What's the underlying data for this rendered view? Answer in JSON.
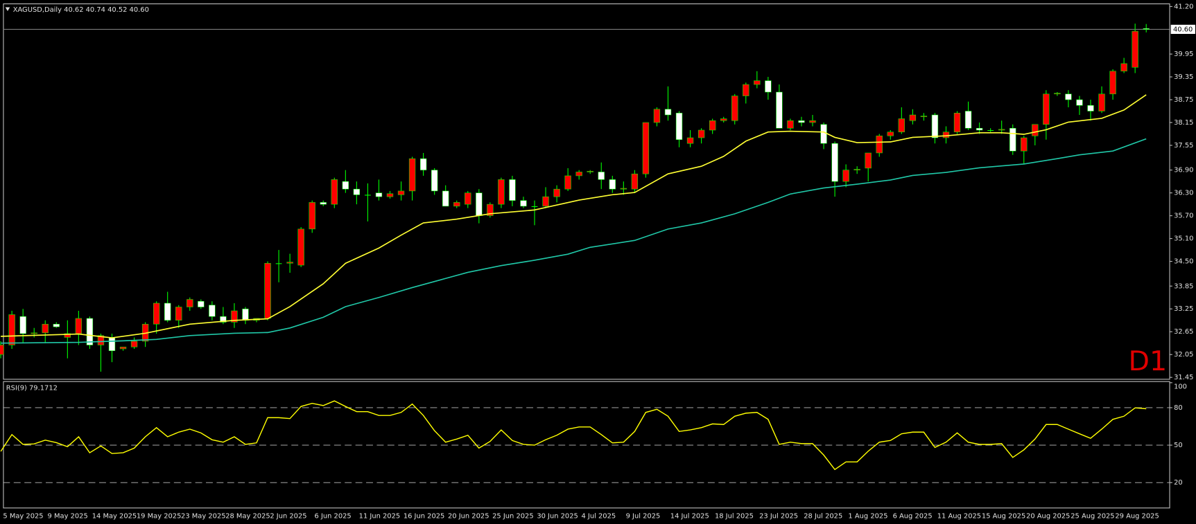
{
  "chart_data": [
    {
      "type": "candlestick",
      "title": "XAGUSD,Daily  40.62 40.74 40.52 40.60",
      "annotation": "D1",
      "annotation_color": "#e00000",
      "categories": [
        "5 May 2025",
        null,
        null,
        null,
        "9 May 2025",
        null,
        null,
        null,
        "14 May 2025",
        null,
        null,
        null,
        "19 May 2025",
        null,
        null,
        null,
        "23 May 2025",
        null,
        null,
        null,
        "28 May 2025",
        null,
        null,
        null,
        "2 Jun 2025",
        null,
        null,
        null,
        "6 Jun 2025",
        null,
        null,
        null,
        "11 Jun 2025",
        null,
        null,
        null,
        "16 Jun 2025",
        null,
        null,
        null,
        "20 Jun 2025",
        null,
        null,
        null,
        "25 Jun 2025",
        null,
        null,
        null,
        "30 Jun 2025",
        null,
        null,
        null,
        "4 Jul 2025",
        null,
        null,
        null,
        "9 Jul 2025",
        null,
        null,
        null,
        "14 Jul 2025",
        null,
        null,
        null,
        "18 Jul 2025",
        null,
        null,
        null,
        "23 Jul 2025",
        null,
        null,
        null,
        "28 Jul 2025",
        null,
        null,
        null,
        "1 Aug 2025",
        null,
        null,
        null,
        "6 Aug 2025",
        null,
        null,
        null,
        "11 Aug 2025",
        null,
        null,
        null,
        "15 Aug 2025",
        null,
        null,
        null,
        "20 Aug 2025",
        null,
        null,
        null,
        "25 Aug 2025",
        null,
        null,
        null,
        "29 Aug 2025",
        null,
        null,
        null
      ],
      "open": [
        32.05,
        32.3,
        33.05,
        32.6,
        32.62,
        32.85,
        32.5,
        32.6,
        33.0,
        32.3,
        32.5,
        32.2,
        32.25,
        32.4,
        32.85,
        33.4,
        32.95,
        33.3,
        33.45,
        33.35,
        33.05,
        32.9,
        33.25,
        32.95,
        33.0,
        34.45,
        34.45,
        34.4,
        35.35,
        36.05,
        36.0,
        36.6,
        36.4,
        36.25,
        36.3,
        36.2,
        36.25,
        36.35,
        37.2,
        36.9,
        36.35,
        35.95,
        36.0,
        36.3,
        35.7,
        36.0,
        36.65,
        36.1,
        35.95,
        35.95,
        36.2,
        36.4,
        36.75,
        36.85,
        36.85,
        36.65,
        36.4,
        36.4,
        36.8,
        38.15,
        38.5,
        38.4,
        37.6,
        37.75,
        37.95,
        38.2,
        38.2,
        38.85,
        39.15,
        39.25,
        38.95,
        38.0,
        38.2,
        38.15,
        38.1,
        37.6,
        36.6,
        36.9,
        36.95,
        37.35,
        37.8,
        37.9,
        38.2,
        38.3,
        38.35,
        37.75,
        37.9,
        38.45,
        38.0,
        37.95,
        37.95,
        38.0,
        37.4,
        37.8,
        38.1,
        38.9,
        38.9,
        38.75,
        38.6,
        38.45,
        38.9,
        39.5,
        39.6,
        40.62
      ],
      "high": [
        32.4,
        33.2,
        33.25,
        32.75,
        32.95,
        32.9,
        32.95,
        33.2,
        33.05,
        32.6,
        32.6,
        32.25,
        32.5,
        32.9,
        33.45,
        33.7,
        33.35,
        33.55,
        33.5,
        33.45,
        33.3,
        33.4,
        33.3,
        33.0,
        34.5,
        34.8,
        34.7,
        35.4,
        36.1,
        36.1,
        36.7,
        36.9,
        36.6,
        36.55,
        36.65,
        36.35,
        36.6,
        37.25,
        37.35,
        36.95,
        36.5,
        36.1,
        36.35,
        36.4,
        36.05,
        36.7,
        36.75,
        36.2,
        36.1,
        36.45,
        36.5,
        36.95,
        36.9,
        36.9,
        37.1,
        36.75,
        36.6,
        36.9,
        38.15,
        38.55,
        39.1,
        38.45,
        37.95,
        38.0,
        38.25,
        38.3,
        38.9,
        39.2,
        39.5,
        39.35,
        39.15,
        38.25,
        38.3,
        38.35,
        38.15,
        37.65,
        37.05,
        37.0,
        37.35,
        37.85,
        37.95,
        38.55,
        38.5,
        38.4,
        38.4,
        38.05,
        38.45,
        38.7,
        38.15,
        38.0,
        38.2,
        38.1,
        37.8,
        38.1,
        39.0,
        38.95,
        39.0,
        38.85,
        38.75,
        39.1,
        39.55,
        39.85,
        40.75,
        40.74
      ],
      "low": [
        31.95,
        32.2,
        32.35,
        32.5,
        32.35,
        32.75,
        31.95,
        32.3,
        32.2,
        31.6,
        31.85,
        32.15,
        32.2,
        32.25,
        32.6,
        32.9,
        32.75,
        33.2,
        33.25,
        32.95,
        32.85,
        32.75,
        32.85,
        32.9,
        32.95,
        33.95,
        34.2,
        34.35,
        35.25,
        35.95,
        35.9,
        36.3,
        36.0,
        35.55,
        36.1,
        36.15,
        36.1,
        36.1,
        36.75,
        36.25,
        35.95,
        35.9,
        35.9,
        35.5,
        35.65,
        35.9,
        35.95,
        35.9,
        35.45,
        35.9,
        36.05,
        36.35,
        36.65,
        36.8,
        36.4,
        36.3,
        36.25,
        36.3,
        36.7,
        38.05,
        38.2,
        37.5,
        37.5,
        37.6,
        37.85,
        38.15,
        38.1,
        38.65,
        39.05,
        38.75,
        38.0,
        37.95,
        38.05,
        38.05,
        37.45,
        36.2,
        36.45,
        36.8,
        36.6,
        37.25,
        37.7,
        37.85,
        38.1,
        38.2,
        37.6,
        37.6,
        37.85,
        37.95,
        37.85,
        37.9,
        37.85,
        37.3,
        37.05,
        37.55,
        37.7,
        38.85,
        38.55,
        38.35,
        38.2,
        38.4,
        38.75,
        39.45,
        39.45,
        40.52
      ],
      "close": [
        32.3,
        33.1,
        32.6,
        32.62,
        32.85,
        32.78,
        32.6,
        33.0,
        32.3,
        32.55,
        32.15,
        32.25,
        32.4,
        32.85,
        33.4,
        32.95,
        33.3,
        33.5,
        33.3,
        33.05,
        32.9,
        33.2,
        32.95,
        33.0,
        34.45,
        34.45,
        34.48,
        35.35,
        36.05,
        36.0,
        36.65,
        36.4,
        36.25,
        36.25,
        36.2,
        36.28,
        36.35,
        37.2,
        36.9,
        36.35,
        35.95,
        36.05,
        36.3,
        35.7,
        36.0,
        36.65,
        36.1,
        35.95,
        35.95,
        36.2,
        36.4,
        36.75,
        36.85,
        36.87,
        36.65,
        36.4,
        36.42,
        36.8,
        38.15,
        38.5,
        38.35,
        37.7,
        37.75,
        37.95,
        38.2,
        38.25,
        38.85,
        39.15,
        39.25,
        38.95,
        38.0,
        38.2,
        38.15,
        38.2,
        37.6,
        36.6,
        36.9,
        36.92,
        37.35,
        37.8,
        37.9,
        38.25,
        38.35,
        38.32,
        37.75,
        37.9,
        38.4,
        38.0,
        37.95,
        37.95,
        37.97,
        37.4,
        37.75,
        38.1,
        38.9,
        38.92,
        38.75,
        38.6,
        38.45,
        38.9,
        39.5,
        39.7,
        40.55,
        40.6
      ],
      "up_color": "#ff0000",
      "down_color": "#ffffff",
      "wick_color": "#00ff00",
      "lines": [
        {
          "color": "#ffff33",
          "x": [
            0,
            7,
            10,
            13,
            17,
            21,
            24,
            26,
            29,
            31,
            34,
            36,
            38,
            41,
            44,
            48,
            52,
            55,
            57,
            60,
            63,
            65,
            67,
            69,
            71,
            74,
            75,
            77,
            80,
            82,
            85,
            88,
            90,
            92,
            94,
            96,
            99,
            101,
            103
          ],
          "values": [
            32.53,
            32.59,
            32.49,
            32.61,
            32.85,
            32.95,
            32.99,
            33.31,
            33.91,
            34.45,
            34.85,
            35.19,
            35.51,
            35.61,
            35.75,
            35.85,
            36.11,
            36.25,
            36.31,
            36.8,
            37.0,
            37.26,
            37.66,
            37.9,
            37.92,
            37.9,
            37.76,
            37.62,
            37.64,
            37.76,
            37.8,
            37.88,
            37.88,
            37.84,
            37.96,
            38.16,
            38.26,
            38.48,
            38.88
          ]
        },
        {
          "color": "#20c8a8",
          "x": [
            0,
            7,
            11,
            14,
            17,
            21,
            24,
            26,
            29,
            31,
            34,
            37,
            40,
            42,
            45,
            48,
            51,
            53,
            57,
            60,
            63,
            66,
            69,
            71,
            74,
            77,
            80,
            82,
            85,
            88,
            92,
            95,
            97,
            100,
            103
          ],
          "values": [
            32.35,
            32.37,
            32.41,
            32.45,
            32.55,
            32.61,
            32.63,
            32.75,
            33.03,
            33.31,
            33.55,
            33.81,
            34.05,
            34.21,
            34.39,
            34.53,
            34.69,
            34.87,
            35.05,
            35.35,
            35.51,
            35.75,
            36.05,
            36.27,
            36.43,
            36.53,
            36.64,
            36.76,
            36.84,
            36.96,
            37.06,
            37.2,
            37.3,
            37.4,
            37.72
          ]
        }
      ],
      "last_price": {
        "value": 40.6,
        "label": "40.60"
      },
      "ylim": [
        31.45,
        41.2
      ],
      "yticks": [
        {
          "value": 41.2,
          "label": "41.20"
        },
        39.95,
        39.35,
        38.75,
        38.15,
        37.55,
        {
          "value": 36.9,
          "label": "36.90"
        },
        {
          "value": 36.3,
          "label": "36.30"
        },
        {
          "value": 35.7,
          "label": "35.70"
        },
        {
          "value": 35.1,
          "label": "35.10"
        },
        {
          "value": 34.5,
          "label": "34.50"
        },
        33.85,
        33.25,
        32.65,
        32.05,
        31.45
      ]
    },
    {
      "type": "line",
      "title": "RSI(9) 79.1712",
      "color": "#ffff00",
      "values": [
        45,
        58.5,
        50.6,
        51,
        54,
        52,
        48.8,
        56.7,
        43.9,
        49.4,
        43.3,
        43.9,
        47.6,
        56.7,
        64,
        56.7,
        60.4,
        62.8,
        59.8,
        54.3,
        52.4,
        56.7,
        50.6,
        51.8,
        72,
        72,
        71.3,
        81,
        83.5,
        81.7,
        85.4,
        81,
        76.8,
        76.8,
        73.8,
        73.8,
        76.2,
        82.9,
        73.8,
        61.6,
        52.4,
        54.9,
        57.9,
        47.6,
        53,
        62.2,
        53.7,
        50.6,
        50,
        54.3,
        57.9,
        62.8,
        64.6,
        64.6,
        58.5,
        51.8,
        52.4,
        61,
        76.2,
        78.7,
        73.2,
        61,
        62.2,
        64,
        67,
        66.5,
        73.2,
        75.6,
        76.2,
        70.7,
        50.6,
        52.4,
        51.2,
        51.2,
        42.1,
        30.5,
        36.6,
        36.6,
        45.1,
        52.4,
        53.7,
        59.1,
        60.4,
        60.4,
        48.2,
        52.4,
        59.8,
        52.4,
        50.6,
        50.6,
        51.2,
        40.2,
        46.3,
        54.9,
        66.5,
        66.5,
        62.8,
        59.1,
        55.5,
        62.8,
        70.7,
        73.2,
        79.9,
        79.1712
      ],
      "levels": [
        20,
        50,
        80
      ],
      "ylim": [
        0,
        100
      ],
      "yticks": [
        20,
        50,
        80,
        100
      ]
    }
  ]
}
